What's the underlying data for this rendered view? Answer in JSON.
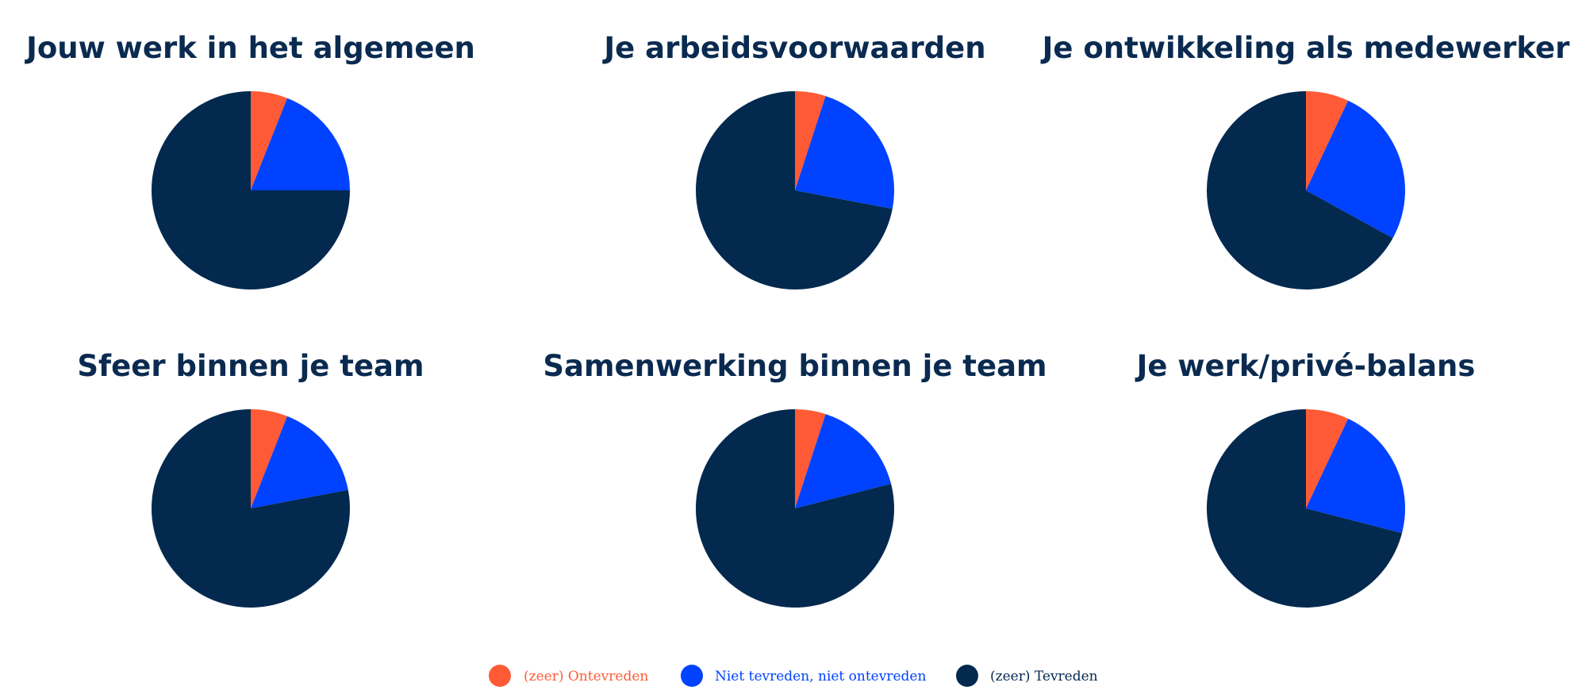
{
  "colors": {
    "ontevreden": "#ff5a36",
    "neutraal": "#0042ff",
    "tevreden": "#03294f",
    "title": "#0a2a50"
  },
  "legend": {
    "ontevreden": "(zeer) Ontevreden",
    "neutraal": "Niet tevreden, niet ontevreden",
    "tevreden": "(zeer) Tevreden"
  },
  "chart_data": [
    {
      "type": "pie",
      "title": "Jouw werk in het algemeen",
      "categories": [
        "(zeer) Ontevreden",
        "Niet tevreden, niet ontevreden",
        "(zeer) Tevreden"
      ],
      "values": [
        6,
        19,
        75
      ]
    },
    {
      "type": "pie",
      "title": "Je arbeidsvoorwaarden",
      "categories": [
        "(zeer) Ontevreden",
        "Niet tevreden, niet ontevreden",
        "(zeer) Tevreden"
      ],
      "values": [
        5,
        23,
        72
      ]
    },
    {
      "type": "pie",
      "title": "Je ontwikkeling als medewerker",
      "categories": [
        "(zeer) Ontevreden",
        "Niet tevreden, niet ontevreden",
        "(zeer) Tevreden"
      ],
      "values": [
        7,
        26,
        67
      ]
    },
    {
      "type": "pie",
      "title": "Sfeer binnen je team",
      "categories": [
        "(zeer) Ontevreden",
        "Niet tevreden, niet ontevreden",
        "(zeer) Tevreden"
      ],
      "values": [
        6,
        16,
        78
      ]
    },
    {
      "type": "pie",
      "title": "Samenwerking binnen je team",
      "categories": [
        "(zeer) Ontevreden",
        "Niet tevreden, niet ontevreden",
        "(zeer) Tevreden"
      ],
      "values": [
        5,
        16,
        79
      ]
    },
    {
      "type": "pie",
      "title": "Je werk/privé-balans",
      "categories": [
        "(zeer) Ontevreden",
        "Niet tevreden, niet ontevreden",
        "(zeer) Tevreden"
      ],
      "values": [
        7,
        22,
        71
      ]
    }
  ]
}
